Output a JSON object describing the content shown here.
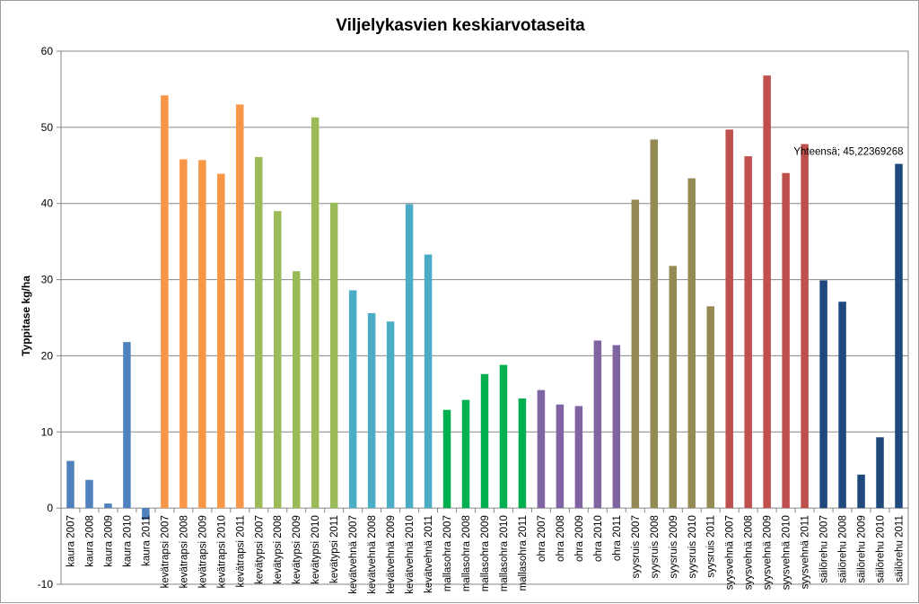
{
  "chart_data": {
    "type": "bar",
    "title": "Viljelykasvien keskiarvotaseita",
    "xlabel": "",
    "ylabel": "Typpitase kg/ha",
    "ylim": [
      -10,
      60
    ],
    "yticks": [
      -10,
      0,
      10,
      20,
      30,
      40,
      50,
      60
    ],
    "grid": true,
    "legend": "none",
    "categories": [
      "kaura 2007",
      "kaura 2008",
      "kaura 2009",
      "kaura 2010",
      "kaura 2011",
      "kevätrapsi 2007",
      "kevätrapsi 2008",
      "kevätrapsi 2009",
      "kevätrapsi 2010",
      "kevätrapsi 2011",
      "kevätypsi 2007",
      "kevätypsi 2008",
      "kevätypsi 2009",
      "kevätypsi 2010",
      "kevätypsi 2011",
      "kevätvehnä 2007",
      "kevätvehnä 2008",
      "kevätvehnä 2009",
      "kevätvehnä 2010",
      "kevätvehnä 2011",
      "mallasohra 2007",
      "mallasohra 2008",
      "mallasohra 2009",
      "mallasohra 2010",
      "mallasohra 2011",
      "ohra 2007",
      "ohra 2008",
      "ohra 2009",
      "ohra 2010",
      "ohra 2011",
      "syysruis 2007",
      "syysruis 2008",
      "syysruis 2009",
      "syysruis 2010",
      "syysruis 2011",
      "syysvehnä 2007",
      "syysvehnä 2008",
      "syysvehnä 2009",
      "syysvehnä 2010",
      "syysvehnä 2011",
      "säilörehu 2007",
      "säilörehu 2008",
      "säilörehu 2009",
      "säilörehu 2010",
      "säilörehu 2011"
    ],
    "values": [
      6.2,
      3.7,
      0.6,
      21.8,
      -1.5,
      54.2,
      45.8,
      45.7,
      43.9,
      53.0,
      46.1,
      39.0,
      31.1,
      51.3,
      40.1,
      28.6,
      25.6,
      24.5,
      39.9,
      33.3,
      12.9,
      14.2,
      17.6,
      18.8,
      14.4,
      15.5,
      13.6,
      13.4,
      22.0,
      21.4,
      40.5,
      48.4,
      31.8,
      43.3,
      26.5,
      49.7,
      46.2,
      56.8,
      44.0,
      47.8,
      29.9,
      27.1,
      4.4,
      9.3,
      45.2
    ],
    "group_colors": [
      "#4f81bd",
      "#f79646",
      "#9bbb59",
      "#4bacc6",
      "#00b050",
      "#8064a2",
      "#948a54",
      "#c0504d",
      "#1f497d"
    ],
    "annotation": {
      "text": "Yhteensä; 45,22369268",
      "index": 44
    }
  }
}
